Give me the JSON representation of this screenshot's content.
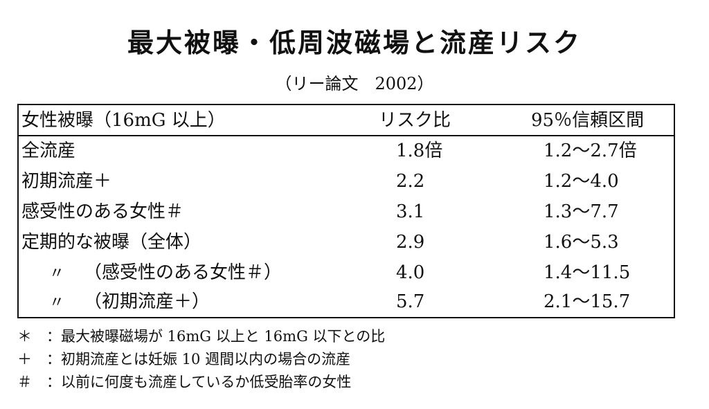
{
  "title": "最大被曝・低周波磁場と流産リスク",
  "subtitle": "（リー論文　2002）",
  "table": {
    "headers": [
      "女性被曝（16mG 以上）",
      "リスク比",
      "95％信頼区間"
    ],
    "rows": [
      {
        "ditto": "",
        "label": "全流産",
        "risk": "1.8倍",
        "ci": "1.2～2.7倍"
      },
      {
        "ditto": "",
        "label": "初期流産＋",
        "risk": "2.2",
        "ci": "1.2～4.0"
      },
      {
        "ditto": "",
        "label": "感受性のある女性＃",
        "risk": "3.1",
        "ci": "1.3～7.7"
      },
      {
        "ditto": "",
        "label": "定期的な被曝（全体）",
        "risk": "2.9",
        "ci": "1.6～5.3"
      },
      {
        "ditto": "〃",
        "label": "（感受性のある女性＃）",
        "risk": "4.0",
        "ci": "1.4～11.5"
      },
      {
        "ditto": "〃",
        "label": "（初期流産＋）",
        "risk": "5.7",
        "ci": "2.1～15.7"
      }
    ]
  },
  "notes": [
    {
      "mark": "＊",
      "text": "：最大被曝磁場が 16mG 以上と 16mG 以下との比"
    },
    {
      "mark": "＋",
      "text": "：初期流産とは妊娠 10 週間以内の場合の流産"
    },
    {
      "mark": "＃",
      "text": "：以前に何度も流産しているか低受胎率の女性"
    }
  ]
}
